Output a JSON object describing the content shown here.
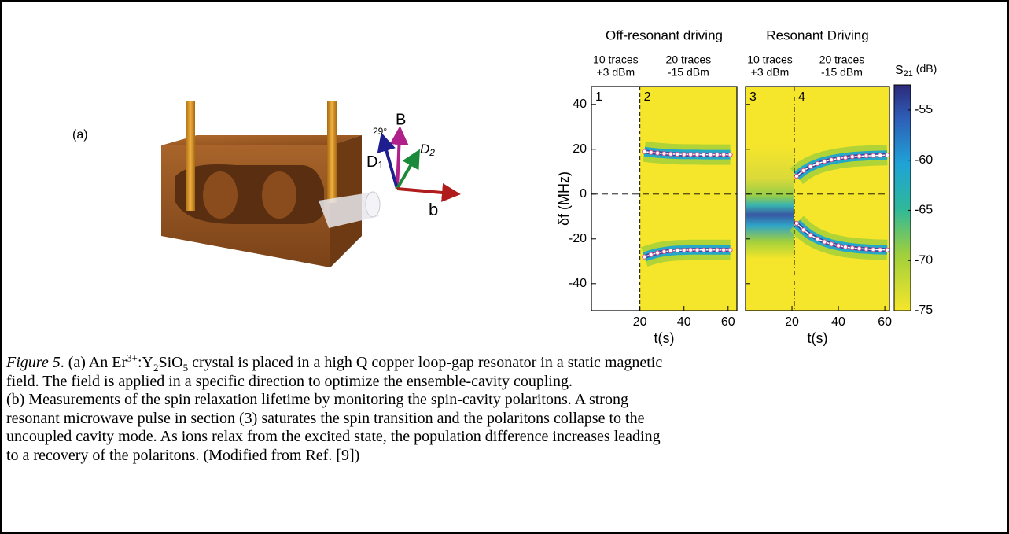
{
  "panel_a": {
    "label": "(a)",
    "angle": "29°",
    "b_field": "B",
    "d1": "D",
    "d1_sub": "1",
    "d2": "D",
    "d2_sub": "2",
    "b_axis": "b"
  },
  "chart_data": [
    {
      "type": "heatmap",
      "title": "Off-resonant driving",
      "xlabel": "t(s)",
      "ylabel": "δf (MHz)",
      "xlim": [
        -2,
        64
      ],
      "ylim": [
        -52,
        48
      ],
      "xticks": [
        20,
        40,
        60
      ],
      "yticks": [
        -40,
        -20,
        0,
        20,
        40
      ],
      "section_boundary": 20,
      "sections": [
        {
          "number": "1",
          "header": [
            "10 traces",
            "+3 dBm"
          ]
        },
        {
          "number": "2",
          "header": [
            "20 traces",
            "-15 dBm"
          ]
        }
      ],
      "series": [
        {
          "color": "#ffffff",
          "x": [
            22,
            25,
            28,
            31,
            34,
            37,
            40,
            43,
            46,
            49,
            52,
            55,
            58,
            61
          ],
          "values": [
            19,
            18.6,
            18.3,
            18.1,
            17.9,
            17.8,
            17.7,
            17.7,
            17.7,
            17.6,
            17.6,
            17.6,
            17.6,
            17.6
          ]
        },
        {
          "color": "#ffffff",
          "x": [
            22,
            25,
            28,
            31,
            34,
            37,
            40,
            43,
            46,
            49,
            52,
            55,
            58,
            61
          ],
          "values": [
            -28,
            -27,
            -26.2,
            -25.7,
            -25.3,
            -25.1,
            -25,
            -24.9,
            -24.9,
            -24.9,
            -24.9,
            -24.9,
            -24.9,
            -24.9
          ]
        }
      ]
    },
    {
      "type": "heatmap",
      "title": "Resonant Driving",
      "xlabel": "t(s)",
      "xlim": [
        0,
        62
      ],
      "ylim": [
        -52,
        48
      ],
      "xticks": [
        20,
        40,
        60
      ],
      "yticks": [
        -40,
        -20,
        0,
        20,
        40
      ],
      "section_boundary": 21,
      "sections": [
        {
          "number": "3",
          "header": [
            "10 traces",
            "+3 dBm"
          ]
        },
        {
          "number": "4",
          "header": [
            "20 traces",
            "-15 dBm"
          ]
        }
      ],
      "series": [
        {
          "color": "#ffffff",
          "x": [
            22,
            25,
            28,
            31,
            34,
            37,
            40,
            43,
            46,
            49,
            52,
            55,
            58,
            61
          ],
          "values": [
            8,
            10.5,
            12.3,
            13.6,
            14.6,
            15.3,
            15.9,
            16.3,
            16.7,
            16.9,
            17.1,
            17.2,
            17.3,
            17.4
          ]
        },
        {
          "color": "#ffffff",
          "x": [
            22,
            25,
            28,
            31,
            34,
            37,
            40,
            43,
            46,
            49,
            52,
            55,
            58,
            61
          ],
          "values": [
            -13,
            -16,
            -18.3,
            -20,
            -21.3,
            -22.3,
            -23,
            -23.6,
            -24,
            -24.3,
            -24.5,
            -24.7,
            -24.8,
            -24.9
          ]
        }
      ],
      "colorbar": {
        "label": "S",
        "label_sub": "21",
        "label_unit": " (dB)",
        "lim": [
          -75,
          -52.5
        ],
        "ticks": [
          -55,
          -60,
          -65,
          -70,
          -75
        ]
      }
    }
  ],
  "caption": {
    "line1": [
      "Figure 5",
      ". (a) An Er",
      "3+",
      ":Y",
      "2",
      "SiO",
      "5",
      " crystal is placed in a high Q copper loop-gap resonator in a static magnetic"
    ],
    "lines": [
      "field. The field is applied in a specific direction to optimize the ensemble-cavity coupling.",
      "(b) Measurements of the spin relaxation lifetime by monitoring the spin-cavity polaritons. A strong",
      "resonant microwave pulse in section (3) saturates the spin transition and the polaritons collapse to the",
      "uncoupled cavity mode. As ions relax from the excited state, the population difference increases leading",
      "to a recovery of the polaritons. (Modified from Ref. [9])"
    ]
  }
}
